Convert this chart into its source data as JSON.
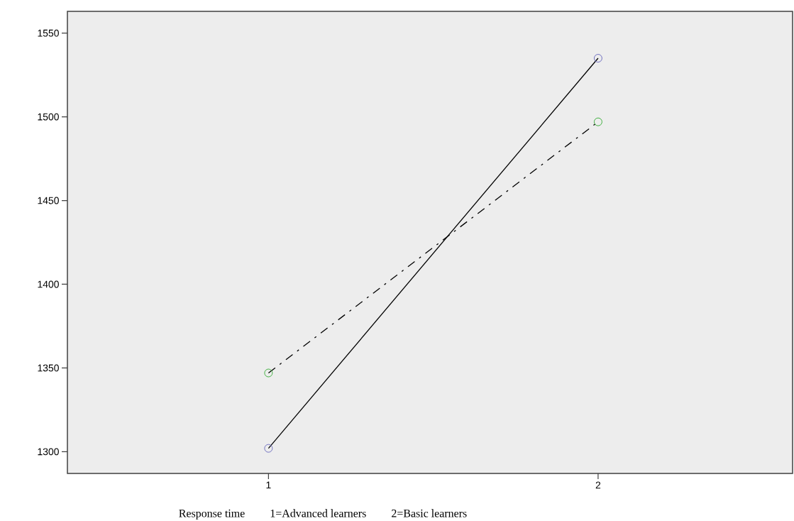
{
  "chart_data": {
    "type": "line",
    "xlabel": "Response time",
    "annotations": [
      "1=Advanced learners",
      "2=Basic learners"
    ],
    "x": [
      1,
      2
    ],
    "series": [
      {
        "color": "#7070c0",
        "values": [
          1302,
          1535
        ],
        "line_style": "solid"
      },
      {
        "color": "#40b040",
        "values": [
          1347,
          1497
        ],
        "line_style": "dashdot"
      }
    ],
    "xlim": [
      0.39,
      2.59
    ],
    "xticks": [
      1,
      2
    ],
    "ylim": [
      1287,
      1563
    ],
    "yticks": [
      1300,
      1350,
      1400,
      1450,
      1500,
      1550
    ],
    "marker": "circle",
    "grid": false
  }
}
